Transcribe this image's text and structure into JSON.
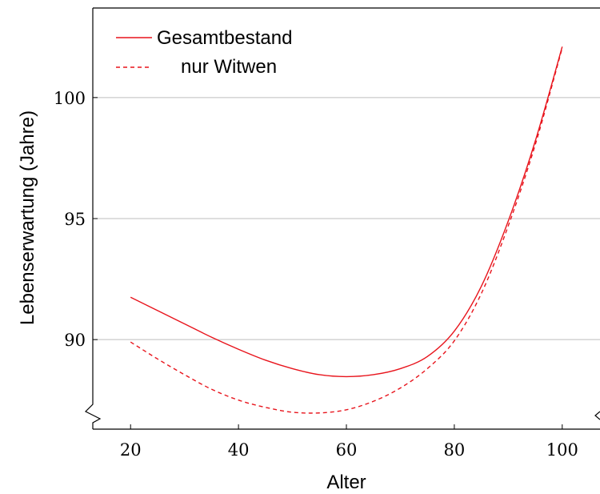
{
  "chart_data": {
    "type": "line",
    "xlabel": "Alter",
    "ylabel": "Lebenserwartung (Jahre)",
    "xlim": [
      13,
      107
    ],
    "ylim": [
      86.3,
      103.7
    ],
    "y_axis_break": true,
    "x_ticks": [
      20,
      40,
      60,
      80,
      100
    ],
    "y_ticks": [
      90,
      95,
      100
    ],
    "grid": "horizontal",
    "legend_position": "top-left",
    "series": [
      {
        "name": "Gesamtbestand",
        "style": "solid",
        "color": "#e8141c",
        "x": [
          20,
          25,
          30,
          35,
          40,
          45,
          50,
          55,
          60,
          65,
          70,
          75,
          80,
          85,
          90,
          95,
          100
        ],
        "y": [
          91.75,
          91.2,
          90.65,
          90.1,
          89.6,
          89.15,
          88.8,
          88.55,
          88.47,
          88.55,
          88.8,
          89.3,
          90.35,
          92.2,
          94.9,
          98.2,
          102.1
        ]
      },
      {
        "name": "nur Witwen",
        "style": "dashed",
        "color": "#e8141c",
        "x": [
          20,
          25,
          30,
          35,
          40,
          45,
          50,
          55,
          60,
          65,
          70,
          75,
          80,
          85,
          90,
          95,
          100
        ],
        "y": [
          89.9,
          89.2,
          88.55,
          87.95,
          87.5,
          87.2,
          87.0,
          86.97,
          87.1,
          87.45,
          88.0,
          88.8,
          89.95,
          91.9,
          94.7,
          98.05,
          102.05
        ]
      }
    ]
  }
}
